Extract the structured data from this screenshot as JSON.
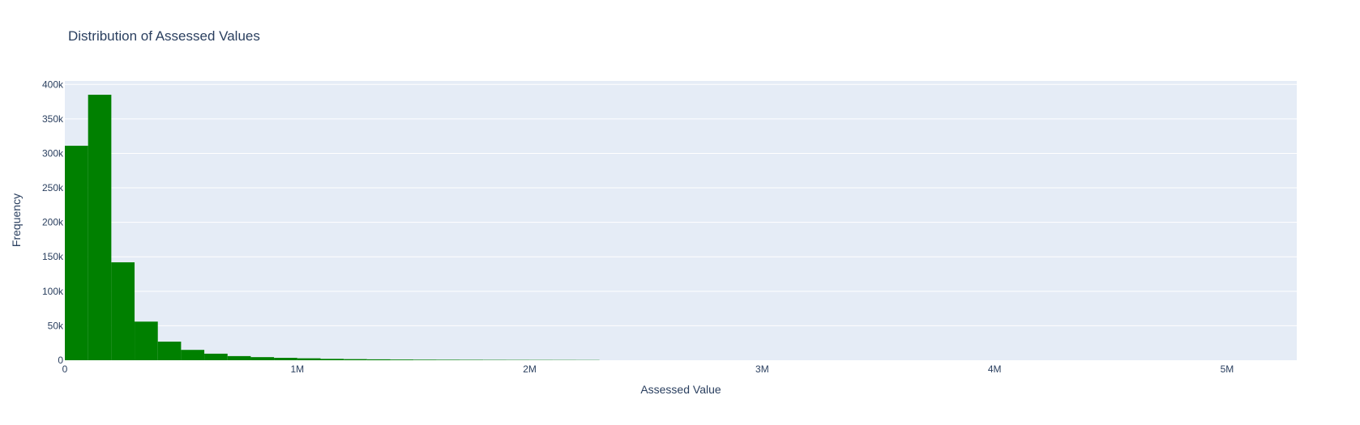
{
  "chart_data": {
    "type": "bar",
    "title": "Distribution of Assessed Values",
    "xlabel": "Assessed Value",
    "ylabel": "Frequency",
    "xlim": [
      0,
      5300000
    ],
    "ylim": [
      0,
      405000
    ],
    "bin_width": 100000,
    "bin_starts": [
      0,
      100000,
      200000,
      300000,
      400000,
      500000,
      600000,
      700000,
      800000,
      900000,
      1000000,
      1100000,
      1200000,
      1300000,
      1400000,
      1500000,
      1600000,
      1700000,
      1800000,
      1900000,
      2000000,
      2100000,
      2200000
    ],
    "values": [
      311000,
      385000,
      142000,
      56000,
      27000,
      15000,
      9500,
      6000,
      4500,
      3500,
      2800,
      2000,
      1600,
      1300,
      1000,
      800,
      700,
      600,
      500,
      450,
      400,
      350,
      300
    ],
    "x_ticks": [
      0,
      1000000,
      2000000,
      3000000,
      4000000,
      5000000
    ],
    "x_tick_labels": [
      "0",
      "1M",
      "2M",
      "3M",
      "4M",
      "5M"
    ],
    "y_ticks": [
      0,
      50000,
      100000,
      150000,
      200000,
      250000,
      300000,
      350000,
      400000
    ],
    "y_tick_labels": [
      "0",
      "50k",
      "100k",
      "150k",
      "200k",
      "250k",
      "300k",
      "350k",
      "400k"
    ],
    "bar_color": "#008000",
    "plot_background": "#e5ecf6",
    "grid": true,
    "legend": false
  }
}
